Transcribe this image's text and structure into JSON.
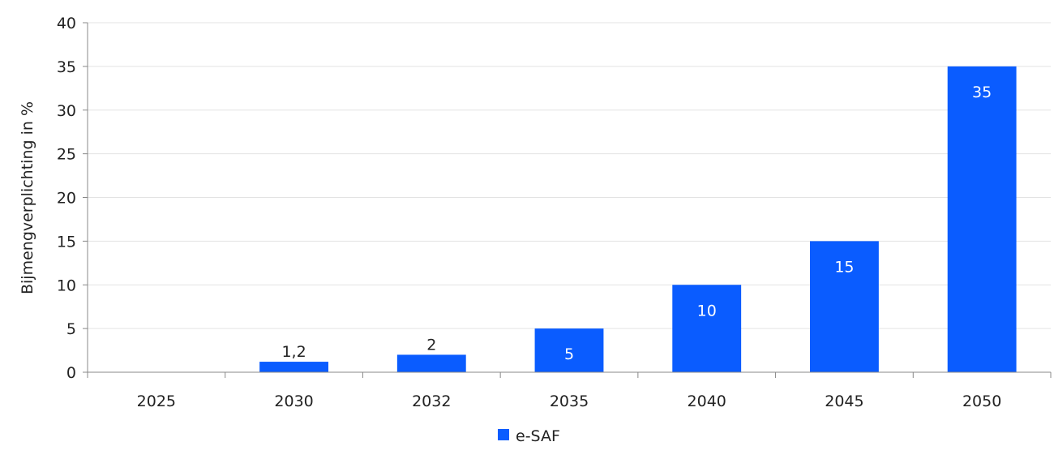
{
  "chart_data": {
    "type": "bar",
    "categories": [
      "2025",
      "2030",
      "2032",
      "2035",
      "2040",
      "2045",
      "2050"
    ],
    "series": [
      {
        "name": "e-SAF",
        "values": [
          0,
          1.2,
          2,
          5,
          10,
          15,
          35
        ],
        "data_labels": [
          "",
          "1,2",
          "2",
          "5",
          "10",
          "15",
          "35"
        ],
        "color": "#0a5cff"
      }
    ],
    "ylabel": "Bijmengverplichting in %",
    "ylim": [
      0,
      40
    ],
    "yticks": [
      0,
      5,
      10,
      15,
      20,
      25,
      30,
      35,
      40
    ],
    "grid": true,
    "legend_position": "bottom-center",
    "colors": {
      "gridline": "#e3e3e3",
      "axis": "#888888",
      "text": "#222222",
      "label_inside": "#ffffff"
    }
  }
}
